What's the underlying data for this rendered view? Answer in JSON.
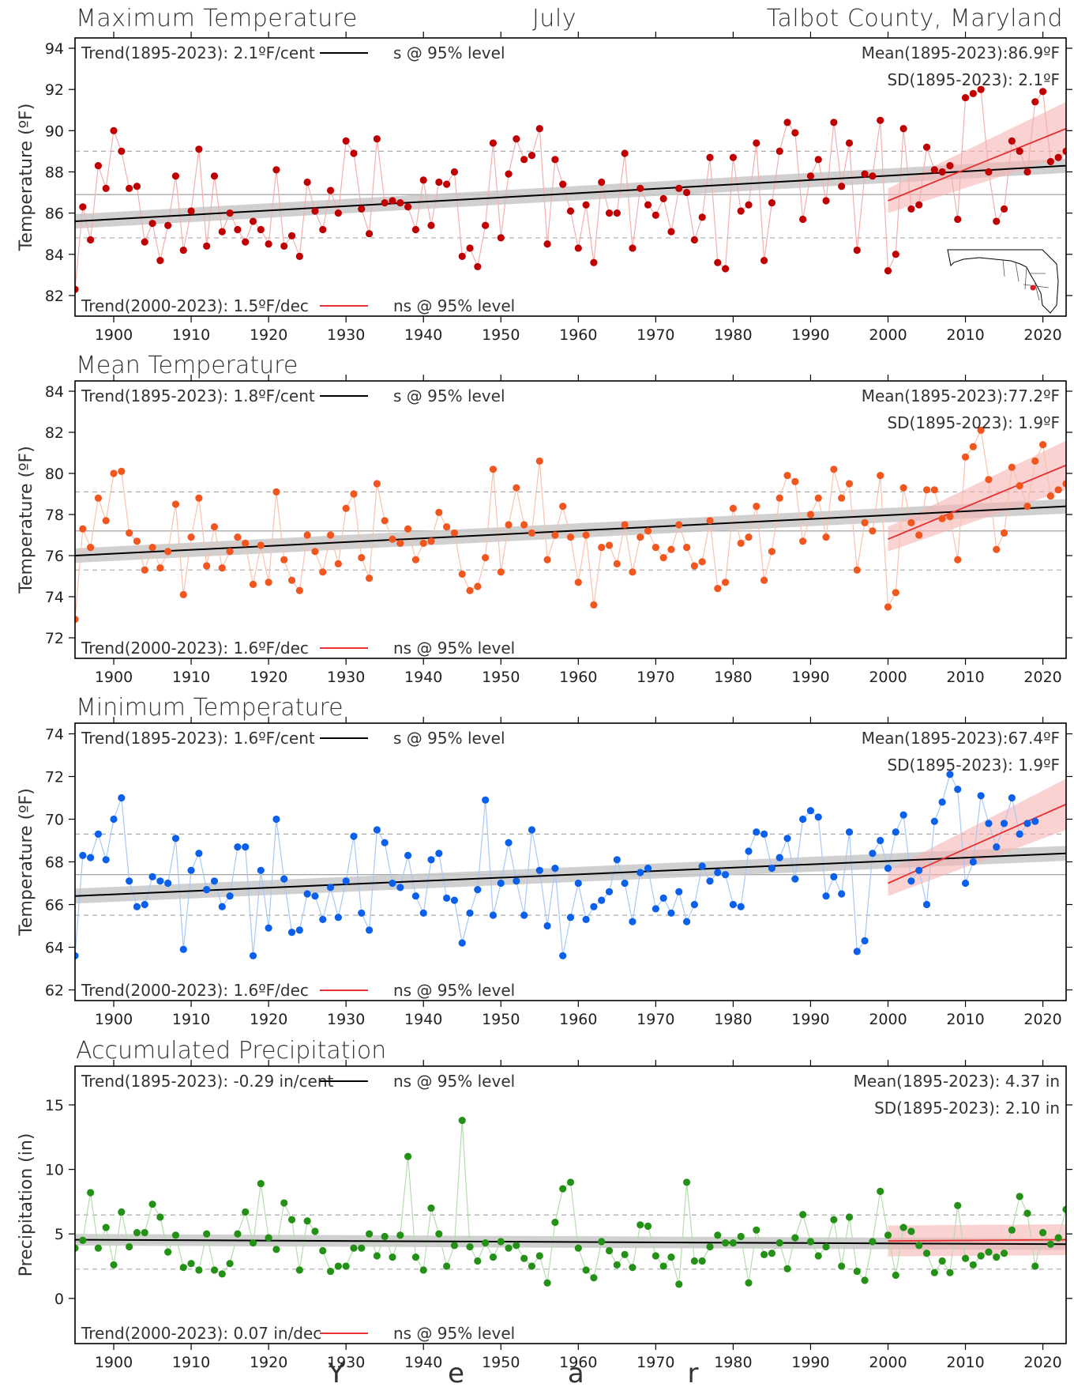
{
  "header": {
    "left": "Maximum Temperature",
    "center": "July",
    "right": "Talbot County, Maryland"
  },
  "x_axis_title": "Y  e  a  r",
  "chart_data": [
    {
      "type": "line",
      "title": "Maximum Temperature",
      "ylabel": "Temperature (ºF)",
      "xlabel": "Year",
      "xlim": [
        1895,
        2023
      ],
      "ylim": [
        81,
        94.5
      ],
      "yticks": [
        82,
        84,
        86,
        88,
        90,
        92,
        94
      ],
      "xticks": [
        1900,
        1910,
        1920,
        1930,
        1940,
        1950,
        1960,
        1970,
        1980,
        1990,
        2000,
        2010,
        2020
      ],
      "color": "#c00000",
      "linecolor": "#f2b0b0",
      "start_year": 1895,
      "values": [
        82.3,
        86.3,
        84.7,
        88.3,
        87.2,
        90.0,
        89.0,
        87.2,
        87.3,
        84.6,
        85.5,
        83.7,
        85.4,
        87.8,
        84.2,
        86.1,
        89.1,
        84.4,
        87.8,
        85.1,
        86.0,
        85.2,
        84.6,
        85.6,
        85.2,
        84.5,
        88.1,
        84.4,
        84.9,
        83.9,
        87.5,
        86.1,
        85.2,
        87.1,
        86.0,
        89.5,
        88.9,
        86.2,
        85.0,
        89.6,
        86.5,
        86.6,
        86.5,
        86.3,
        85.2,
        87.6,
        85.4,
        87.5,
        87.4,
        88.0,
        83.9,
        84.3,
        83.4,
        85.4,
        89.4,
        84.8,
        87.9,
        89.6,
        88.6,
        88.8,
        90.1,
        84.5,
        88.6,
        87.4,
        86.1,
        84.3,
        86.4,
        83.6,
        87.5,
        86.0,
        86.0,
        88.9,
        84.3,
        87.2,
        86.4,
        85.9,
        86.7,
        85.1,
        87.2,
        87.0,
        84.7,
        85.8,
        88.7,
        83.6,
        83.3,
        88.7,
        86.1,
        86.4,
        89.4,
        83.7,
        86.5,
        89.0,
        90.4,
        89.9,
        85.7,
        87.8,
        88.6,
        86.6,
        90.4,
        87.3,
        89.4,
        84.2,
        87.9,
        87.8,
        90.5,
        83.2,
        84.0,
        90.1,
        86.2,
        86.4,
        89.2,
        88.1,
        88.0,
        88.3,
        85.7,
        91.6,
        91.8,
        92.0,
        88.0,
        85.6,
        86.2,
        89.5,
        89.0,
        88.0,
        91.4,
        91.9,
        88.5,
        88.7,
        89.0
      ],
      "mean": 86.9,
      "sd": 2.1,
      "trend_long": {
        "start": 85.6,
        "end": 88.3,
        "band": 0.35
      },
      "trend_recent": {
        "start": 86.6,
        "end": 90.1,
        "band_start": 0.6,
        "band_end": 1.3
      },
      "trend_long_label": "Trend(1895-2023):  2.1ºF/cent",
      "trend_long_sig": "s @ 95% level",
      "trend_recent_label": "Trend(2000-2023):  1.5ºF/dec",
      "trend_recent_sig": "ns @ 95% level",
      "mean_label": "Mean(1895-2023):86.9ºF",
      "sd_label": "SD(1895-2023): 2.1ºF",
      "show_map": true
    },
    {
      "type": "line",
      "title": "Mean Temperature",
      "ylabel": "Temperature (ºF)",
      "xlabel": "Year",
      "xlim": [
        1895,
        2023
      ],
      "ylim": [
        71,
        84.5
      ],
      "yticks": [
        72,
        74,
        76,
        78,
        80,
        82,
        84
      ],
      "xticks": [
        1900,
        1910,
        1920,
        1930,
        1940,
        1950,
        1960,
        1970,
        1980,
        1990,
        2000,
        2010,
        2020
      ],
      "color": "#f0561e",
      "linecolor": "#f9c2ae",
      "start_year": 1895,
      "values": [
        72.9,
        77.3,
        76.4,
        78.8,
        77.7,
        80.0,
        80.1,
        77.1,
        76.7,
        75.3,
        76.4,
        75.4,
        76.2,
        78.5,
        74.1,
        76.9,
        78.8,
        75.5,
        77.4,
        75.4,
        76.2,
        76.9,
        76.6,
        74.6,
        76.5,
        74.7,
        79.1,
        75.8,
        74.8,
        74.3,
        77.0,
        76.2,
        75.2,
        77.0,
        75.6,
        78.3,
        79.0,
        75.9,
        74.9,
        79.5,
        77.7,
        76.8,
        76.6,
        77.3,
        75.8,
        76.6,
        76.7,
        78.1,
        77.4,
        77.1,
        75.1,
        74.3,
        74.5,
        75.9,
        80.2,
        75.2,
        77.5,
        79.3,
        77.5,
        77.1,
        80.6,
        75.8,
        77.0,
        78.4,
        76.9,
        74.7,
        77.0,
        73.6,
        76.4,
        76.5,
        75.6,
        77.5,
        75.2,
        76.9,
        77.2,
        76.4,
        75.9,
        76.3,
        77.5,
        76.4,
        75.5,
        75.7,
        77.7,
        74.4,
        74.7,
        78.3,
        76.6,
        76.9,
        78.4,
        74.8,
        76.2,
        78.8,
        79.9,
        79.6,
        76.7,
        78.0,
        78.8,
        76.9,
        80.2,
        78.8,
        79.5,
        75.3,
        77.6,
        77.2,
        79.9,
        73.5,
        74.2,
        79.3,
        77.6,
        77.0,
        79.2,
        79.2,
        77.8,
        77.9,
        75.8,
        80.8,
        81.3,
        82.1,
        79.7,
        76.3,
        77.1,
        80.3,
        79.4,
        78.4,
        80.6,
        81.4,
        78.9,
        79.2,
        79.5
      ],
      "mean": 77.2,
      "sd": 1.9,
      "trend_long": {
        "start": 76.0,
        "end": 78.4,
        "band": 0.35
      },
      "trend_recent": {
        "start": 76.8,
        "end": 80.4,
        "band_start": 0.6,
        "band_end": 1.2
      },
      "trend_long_label": "Trend(1895-2023):  1.8ºF/cent",
      "trend_long_sig": "s @ 95% level",
      "trend_recent_label": "Trend(2000-2023):  1.6ºF/dec",
      "trend_recent_sig": "ns @ 95% level",
      "mean_label": "Mean(1895-2023):77.2ºF",
      "sd_label": "SD(1895-2023): 1.9ºF",
      "show_map": false
    },
    {
      "type": "line",
      "title": "Minimum Temperature",
      "ylabel": "Temperature (ºF)",
      "xlabel": "Year",
      "xlim": [
        1895,
        2023
      ],
      "ylim": [
        61.5,
        74.5
      ],
      "yticks": [
        62,
        64,
        66,
        68,
        70,
        72,
        74
      ],
      "xticks": [
        1900,
        1910,
        1920,
        1930,
        1940,
        1950,
        1960,
        1970,
        1980,
        1990,
        2000,
        2010,
        2020
      ],
      "color": "#0a60ea",
      "linecolor": "#a8c8f6",
      "start_year": 1895,
      "values": [
        63.6,
        68.3,
        68.2,
        69.3,
        68.1,
        70.0,
        71.0,
        67.1,
        65.9,
        66.0,
        67.3,
        67.1,
        67.0,
        69.1,
        63.9,
        67.6,
        68.4,
        66.7,
        67.1,
        65.9,
        66.4,
        68.7,
        68.7,
        63.6,
        67.6,
        64.9,
        70.0,
        67.2,
        64.7,
        64.8,
        66.5,
        66.4,
        65.3,
        66.8,
        65.4,
        67.1,
        69.2,
        65.6,
        64.8,
        69.5,
        68.9,
        67.0,
        66.8,
        68.3,
        66.4,
        65.6,
        68.1,
        68.4,
        66.3,
        66.2,
        64.2,
        65.6,
        66.7,
        70.9,
        65.5,
        67.0,
        68.9,
        67.1,
        65.5,
        69.5,
        67.6,
        65.0,
        67.7,
        63.6,
        65.4,
        67.0,
        65.3,
        65.9,
        66.2,
        66.6,
        68.1,
        67.0,
        65.2,
        67.5,
        67.7,
        65.8,
        66.3,
        65.6,
        66.6,
        65.2,
        66.0,
        67.8,
        67.1,
        67.5,
        67.4,
        66.0,
        65.9,
        68.5,
        69.4,
        69.3,
        67.7,
        68.2,
        69.1,
        67.2,
        70.0,
        70.4,
        70.1,
        66.4,
        67.3,
        66.5,
        69.4,
        63.8,
        64.3,
        68.4,
        69.0,
        67.7,
        69.4,
        70.2,
        67.1,
        67.6,
        66.0,
        69.9,
        70.8,
        72.1,
        71.4,
        67.0,
        68.0,
        71.1,
        69.8,
        68.7,
        69.8,
        71.0,
        69.3,
        69.8,
        69.9
      ],
      "mean": 67.4,
      "sd": 1.9,
      "trend_long": {
        "start": 66.4,
        "end": 68.4,
        "band": 0.35
      },
      "trend_recent": {
        "start": 67.0,
        "end": 70.7,
        "band_start": 0.6,
        "band_end": 1.2
      },
      "trend_long_label": "Trend(1895-2023):  1.6ºF/cent",
      "trend_long_sig": "s @ 95% level",
      "trend_recent_label": "Trend(2000-2023):  1.6ºF/dec",
      "trend_recent_sig": "ns @ 95% level",
      "mean_label": "Mean(1895-2023):67.4ºF",
      "sd_label": "SD(1895-2023): 1.9ºF",
      "show_map": false
    },
    {
      "type": "line",
      "title": "Accumulated Precipitation",
      "ylabel": "Precipitation (in)",
      "xlabel": "Year",
      "xlim": [
        1895,
        2023
      ],
      "ylim": [
        -3.5,
        18
      ],
      "yticks": [
        0,
        5,
        10,
        15
      ],
      "xticks": [
        1900,
        1910,
        1920,
        1930,
        1940,
        1950,
        1960,
        1970,
        1980,
        1990,
        2000,
        2010,
        2020
      ],
      "color": "#239016",
      "linecolor": "#b5dcae",
      "start_year": 1895,
      "values": [
        3.9,
        4.5,
        8.2,
        3.9,
        5.5,
        2.6,
        6.7,
        4.0,
        5.1,
        5.1,
        7.3,
        6.3,
        3.6,
        4.9,
        2.4,
        2.7,
        2.2,
        5.0,
        2.2,
        1.9,
        2.7,
        5.0,
        6.7,
        4.3,
        8.9,
        4.7,
        3.8,
        7.4,
        6.1,
        2.2,
        6.0,
        5.2,
        3.7,
        2.1,
        2.5,
        2.5,
        3.9,
        3.9,
        5.0,
        3.3,
        4.8,
        3.2,
        4.9,
        11.0,
        3.2,
        2.2,
        7.0,
        5.0,
        2.5,
        4.1,
        13.8,
        4.0,
        2.9,
        4.3,
        3.2,
        4.4,
        3.9,
        4.1,
        3.1,
        2.5,
        3.3,
        1.2,
        5.9,
        8.5,
        9.0,
        3.9,
        2.2,
        1.6,
        4.4,
        3.7,
        2.6,
        3.4,
        2.4,
        5.7,
        5.6,
        3.3,
        2.5,
        3.2,
        1.1,
        9.0,
        2.9,
        2.9,
        4.0,
        4.9,
        4.3,
        4.3,
        4.8,
        1.2,
        5.3,
        3.4,
        3.5,
        4.3,
        2.3,
        4.7,
        6.5,
        4.4,
        3.3,
        4.0,
        6.1,
        2.5,
        6.3,
        2.1,
        1.4,
        4.4,
        8.3,
        4.9,
        1.8,
        5.5,
        5.2,
        4.1,
        3.5,
        2.0,
        2.9,
        2.0,
        7.2,
        3.1,
        2.6,
        3.3,
        3.6,
        3.2,
        3.5,
        5.3,
        7.9,
        6.6,
        2.5,
        5.1,
        4.2,
        4.7,
        6.9
      ],
      "mean": 4.37,
      "sd": 2.1,
      "trend_long": {
        "start": 4.55,
        "end": 4.2,
        "band": 0.45
      },
      "trend_recent": {
        "start": 4.45,
        "end": 4.55,
        "band_start": 1.2,
        "band_end": 1.2
      },
      "trend_long_label": "Trend(1895-2023): -0.29 in/cent",
      "trend_long_sig": "ns @ 95% level",
      "trend_recent_label": "Trend(2000-2023):  0.07 in/dec",
      "trend_recent_sig": "ns @ 95% level",
      "mean_label": "Mean(1895-2023): 4.37 in",
      "sd_label": "SD(1895-2023): 2.10 in",
      "show_map": false
    }
  ]
}
